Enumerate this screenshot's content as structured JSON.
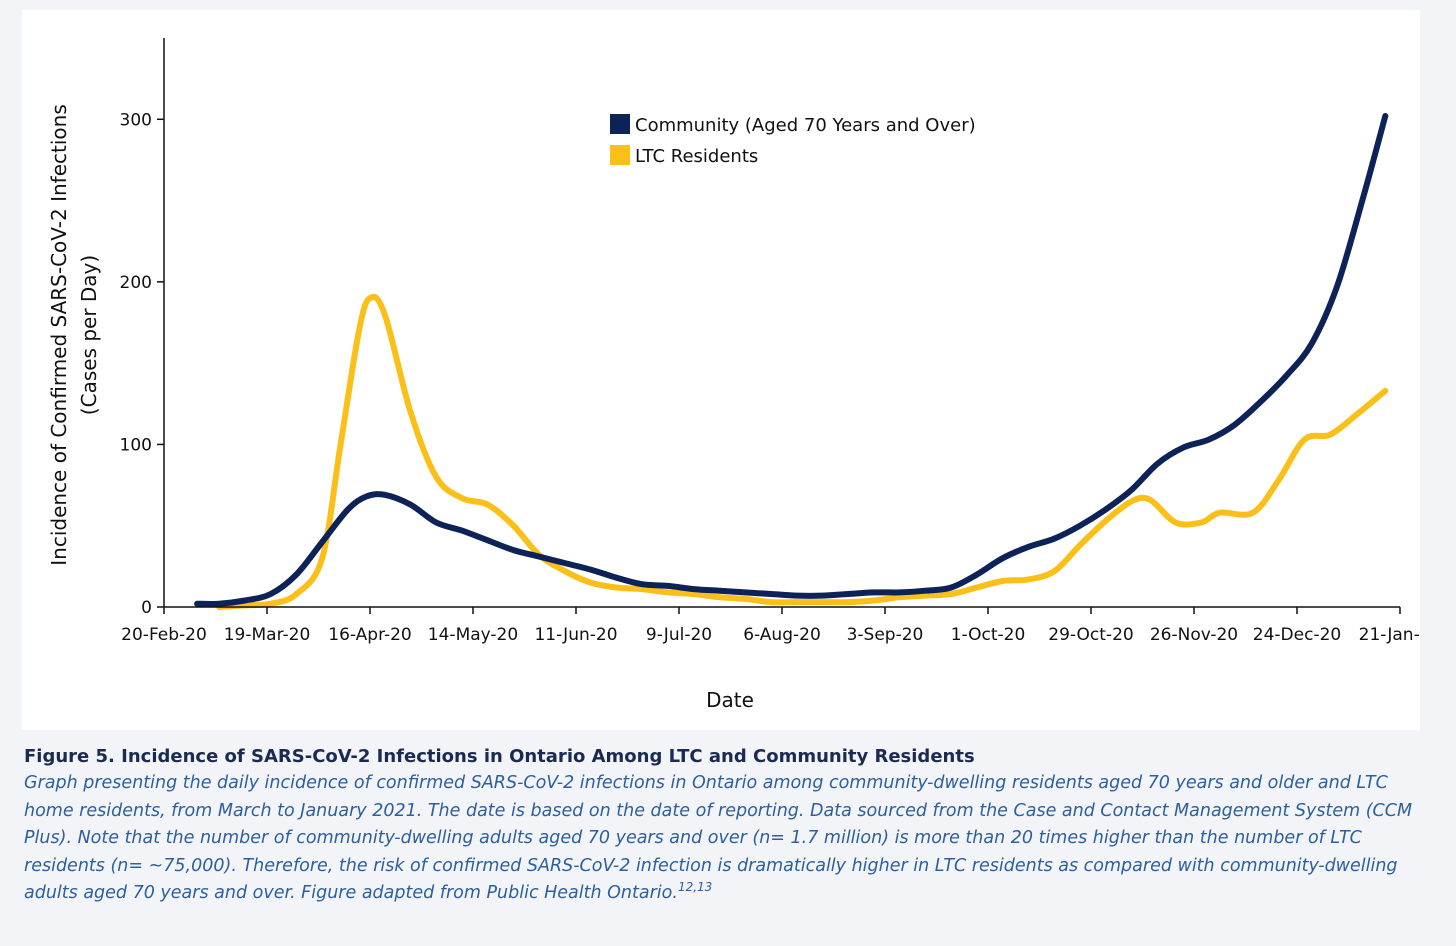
{
  "figure": {
    "title": "Figure 5. Incidence of SARS-CoV-2 Infections in Ontario Among LTC and Community Residents",
    "caption": "Graph presenting the daily incidence of confirmed SARS-CoV-2 infections in Ontario among community-dwelling residents aged 70 years and older and LTC home residents, from March to January 2021. The date is based on the date of reporting. Data sourced from the Case and Contact Management System (CCM Plus). Note that the number of community-dwelling adults aged 70 years and over (n= 1.7 million) is more than 20 times higher than the number of LTC residents (n= ~75,000). Therefore, the risk of confirmed SARS-CoV-2 infection is dramatically higher in LTC residents as compared with community-dwelling adults aged 70 years and over. Figure adapted from Public Health Ontario.",
    "caption_superscript": "12,13"
  },
  "chart_data": {
    "type": "line",
    "title": "",
    "xlabel": "Date",
    "ylabel": "Incidence of Confirmed SARS-CoV-2 Infections",
    "ylabel_line2": "(Cases per Day)",
    "x_tick_labels": [
      "20-Feb-20",
      "19-Mar-20",
      "16-Apr-20",
      "14-May-20",
      "11-Jun-20",
      "9-Jul-20",
      "6-Aug-20",
      "3-Sep-20",
      "1-Oct-20",
      "29-Oct-20",
      "26-Nov-20",
      "24-Dec-20",
      "21-Jan-21"
    ],
    "y_ticks": [
      0,
      100,
      200,
      300
    ],
    "ylim": [
      0,
      350
    ],
    "xlim": [
      "2020-02-20",
      "2021-01-21"
    ],
    "grid": false,
    "legend_position": "top-center",
    "series": [
      {
        "name": "Community (Aged 70 Years and Over)",
        "color": "#0d2257",
        "points": [
          [
            "2020-02-29",
            2
          ],
          [
            "2020-03-06",
            2
          ],
          [
            "2020-03-13",
            4
          ],
          [
            "2020-03-20",
            8
          ],
          [
            "2020-03-27",
            20
          ],
          [
            "2020-04-03",
            40
          ],
          [
            "2020-04-10",
            60
          ],
          [
            "2020-04-15",
            68
          ],
          [
            "2020-04-20",
            69
          ],
          [
            "2020-04-27",
            63
          ],
          [
            "2020-05-04",
            52
          ],
          [
            "2020-05-11",
            47
          ],
          [
            "2020-05-18",
            41
          ],
          [
            "2020-05-25",
            35
          ],
          [
            "2020-06-01",
            31
          ],
          [
            "2020-06-08",
            27
          ],
          [
            "2020-06-15",
            23
          ],
          [
            "2020-06-22",
            18
          ],
          [
            "2020-06-29",
            14
          ],
          [
            "2020-07-06",
            13
          ],
          [
            "2020-07-13",
            11
          ],
          [
            "2020-07-20",
            10
          ],
          [
            "2020-07-27",
            9
          ],
          [
            "2020-08-03",
            8
          ],
          [
            "2020-08-10",
            7
          ],
          [
            "2020-08-17",
            7
          ],
          [
            "2020-08-24",
            8
          ],
          [
            "2020-08-31",
            9
          ],
          [
            "2020-09-07",
            9
          ],
          [
            "2020-09-14",
            10
          ],
          [
            "2020-09-21",
            12
          ],
          [
            "2020-09-28",
            20
          ],
          [
            "2020-10-05",
            30
          ],
          [
            "2020-10-12",
            37
          ],
          [
            "2020-10-19",
            42
          ],
          [
            "2020-10-26",
            50
          ],
          [
            "2020-11-02",
            60
          ],
          [
            "2020-11-09",
            72
          ],
          [
            "2020-11-16",
            88
          ],
          [
            "2020-11-23",
            98
          ],
          [
            "2020-11-30",
            103
          ],
          [
            "2020-12-07",
            112
          ],
          [
            "2020-12-14",
            126
          ],
          [
            "2020-12-21",
            142
          ],
          [
            "2020-12-28",
            162
          ],
          [
            "2021-01-04",
            198
          ],
          [
            "2021-01-11",
            252
          ],
          [
            "2021-01-17",
            302
          ]
        ]
      },
      {
        "name": "LTC Residents",
        "color": "#fbbf1a",
        "points": [
          [
            "2020-03-06",
            0
          ],
          [
            "2020-03-13",
            1
          ],
          [
            "2020-03-20",
            2
          ],
          [
            "2020-03-27",
            8
          ],
          [
            "2020-04-03",
            30
          ],
          [
            "2020-04-08",
            100
          ],
          [
            "2020-04-13",
            170
          ],
          [
            "2020-04-16",
            190
          ],
          [
            "2020-04-20",
            180
          ],
          [
            "2020-04-27",
            120
          ],
          [
            "2020-05-04",
            80
          ],
          [
            "2020-05-11",
            67
          ],
          [
            "2020-05-18",
            63
          ],
          [
            "2020-05-25",
            50
          ],
          [
            "2020-06-01",
            32
          ],
          [
            "2020-06-08",
            22
          ],
          [
            "2020-06-15",
            15
          ],
          [
            "2020-06-22",
            12
          ],
          [
            "2020-06-29",
            11
          ],
          [
            "2020-07-06",
            9
          ],
          [
            "2020-07-13",
            8
          ],
          [
            "2020-07-20",
            6
          ],
          [
            "2020-07-27",
            5
          ],
          [
            "2020-08-03",
            3
          ],
          [
            "2020-08-10",
            3
          ],
          [
            "2020-08-17",
            3
          ],
          [
            "2020-08-24",
            3
          ],
          [
            "2020-08-31",
            4
          ],
          [
            "2020-09-07",
            6
          ],
          [
            "2020-09-14",
            7
          ],
          [
            "2020-09-21",
            8
          ],
          [
            "2020-09-28",
            12
          ],
          [
            "2020-10-05",
            16
          ],
          [
            "2020-10-12",
            17
          ],
          [
            "2020-10-19",
            22
          ],
          [
            "2020-10-26",
            38
          ],
          [
            "2020-11-02",
            53
          ],
          [
            "2020-11-09",
            65
          ],
          [
            "2020-11-14",
            66
          ],
          [
            "2020-11-21",
            52
          ],
          [
            "2020-11-28",
            52
          ],
          [
            "2020-12-03",
            58
          ],
          [
            "2020-12-12",
            58
          ],
          [
            "2020-12-19",
            78
          ],
          [
            "2020-12-26",
            103
          ],
          [
            "2021-01-02",
            106
          ],
          [
            "2021-01-09",
            118
          ],
          [
            "2021-01-17",
            133
          ]
        ]
      }
    ]
  }
}
